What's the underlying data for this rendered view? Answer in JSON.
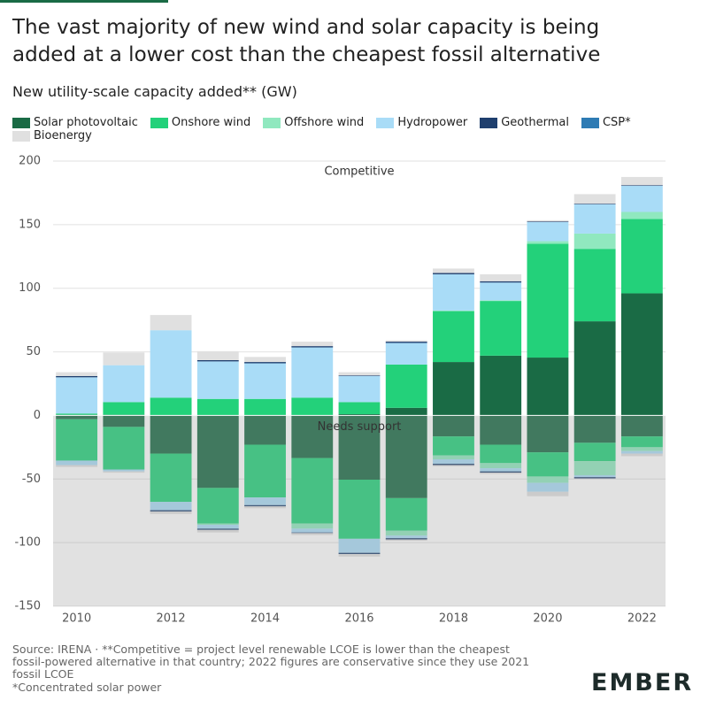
{
  "chart_data": {
    "type": "bar",
    "title": "The vast majority of new wind and solar capacity is being added at a lower cost than the cheapest fossil alternative",
    "subtitle": "New utility-scale capacity added** (GW)",
    "categories": [
      "2010",
      null,
      "2012",
      null,
      "2014",
      null,
      "2016",
      null,
      "2018",
      null,
      "2020",
      null,
      "2022"
    ],
    "series": [
      {
        "name": "Solar photovoltaic",
        "color": "#1a6b45",
        "values": [
          0.5,
          0.5,
          0,
          0,
          0,
          0,
          1,
          6,
          42,
          47,
          45.5,
          74,
          96
        ],
        "needs_support": [
          -3,
          -9,
          -30,
          -57,
          -23,
          -33.5,
          -50.5,
          -65,
          -16.5,
          -23,
          -29,
          -21.5,
          -16.5
        ]
      },
      {
        "name": "Onshore wind",
        "color": "#23d17a",
        "values": [
          1,
          10,
          14,
          13,
          13,
          14,
          9.5,
          34,
          40,
          43,
          89.5,
          57,
          58.5
        ],
        "needs_support": [
          -32.5,
          -33.5,
          -38,
          -28,
          -41.5,
          -51.5,
          -46.5,
          -25.5,
          -15,
          -14.5,
          -19,
          -14.5,
          -8.5
        ]
      },
      {
        "name": "Offshore wind",
        "color": "#90e8bf",
        "values": [
          0,
          0,
          0,
          0,
          0,
          0,
          0,
          0,
          0.5,
          0.5,
          2,
          12,
          5.5
        ],
        "needs_support": [
          0,
          0,
          0,
          -1,
          0,
          -4,
          0,
          -4,
          -3,
          -4,
          -5,
          -11,
          -3
        ]
      },
      {
        "name": "Hydropower",
        "color": "#a9dcf7",
        "values": [
          28.5,
          29,
          53,
          29.5,
          28,
          39.5,
          20.5,
          17,
          28.5,
          14,
          15,
          23,
          20.5
        ],
        "needs_support": [
          -3.5,
          -1.5,
          -6.5,
          -3,
          -6,
          -3,
          -11,
          -2,
          -3.5,
          -2.5,
          -7,
          -1.5,
          -2
        ]
      },
      {
        "name": "Geothermal",
        "color": "#1f3f6e",
        "values": [
          1,
          0,
          0,
          1,
          1,
          1,
          0.5,
          1,
          1,
          1,
          0.5,
          0.5,
          0.5
        ],
        "needs_support": [
          0,
          0,
          -1,
          -1,
          -1,
          -0.5,
          -1,
          -1,
          -1,
          -1,
          0,
          -1,
          0
        ]
      },
      {
        "name": "CSP*",
        "color": "#2e7bb4",
        "values": [
          0,
          0,
          0,
          0,
          0,
          0,
          0,
          0,
          0,
          0,
          0,
          0,
          0
        ],
        "needs_support": [
          0,
          0,
          0,
          0,
          0,
          0,
          0,
          0,
          0,
          0,
          0,
          0,
          0
        ]
      },
      {
        "name": "Bioenergy",
        "color": "#e0e0e0",
        "values": [
          3,
          10,
          12,
          7,
          4,
          3.5,
          2.5,
          1,
          3.5,
          5.5,
          1,
          7.5,
          6.5
        ],
        "needs_support": [
          -1.5,
          -1,
          -2,
          -2,
          -1.5,
          -1.5,
          -2,
          -1,
          -1,
          -1,
          -3.5,
          0,
          -2
        ]
      }
    ],
    "annotations": [
      "Competitive",
      "Needs support"
    ],
    "ylim": [
      -150,
      200
    ],
    "yticks": [
      -150,
      -100,
      -50,
      0,
      50,
      100,
      150,
      200
    ],
    "grid": true,
    "source": "Source: IRENA · **Competitive = project level renewable LCOE is lower than the cheapest fossil-powered alternative in that country; 2022 figures are conservative since they use 2021 fossil LCOE",
    "footnote": "*Concentrated solar power",
    "logo": "EMBER"
  }
}
